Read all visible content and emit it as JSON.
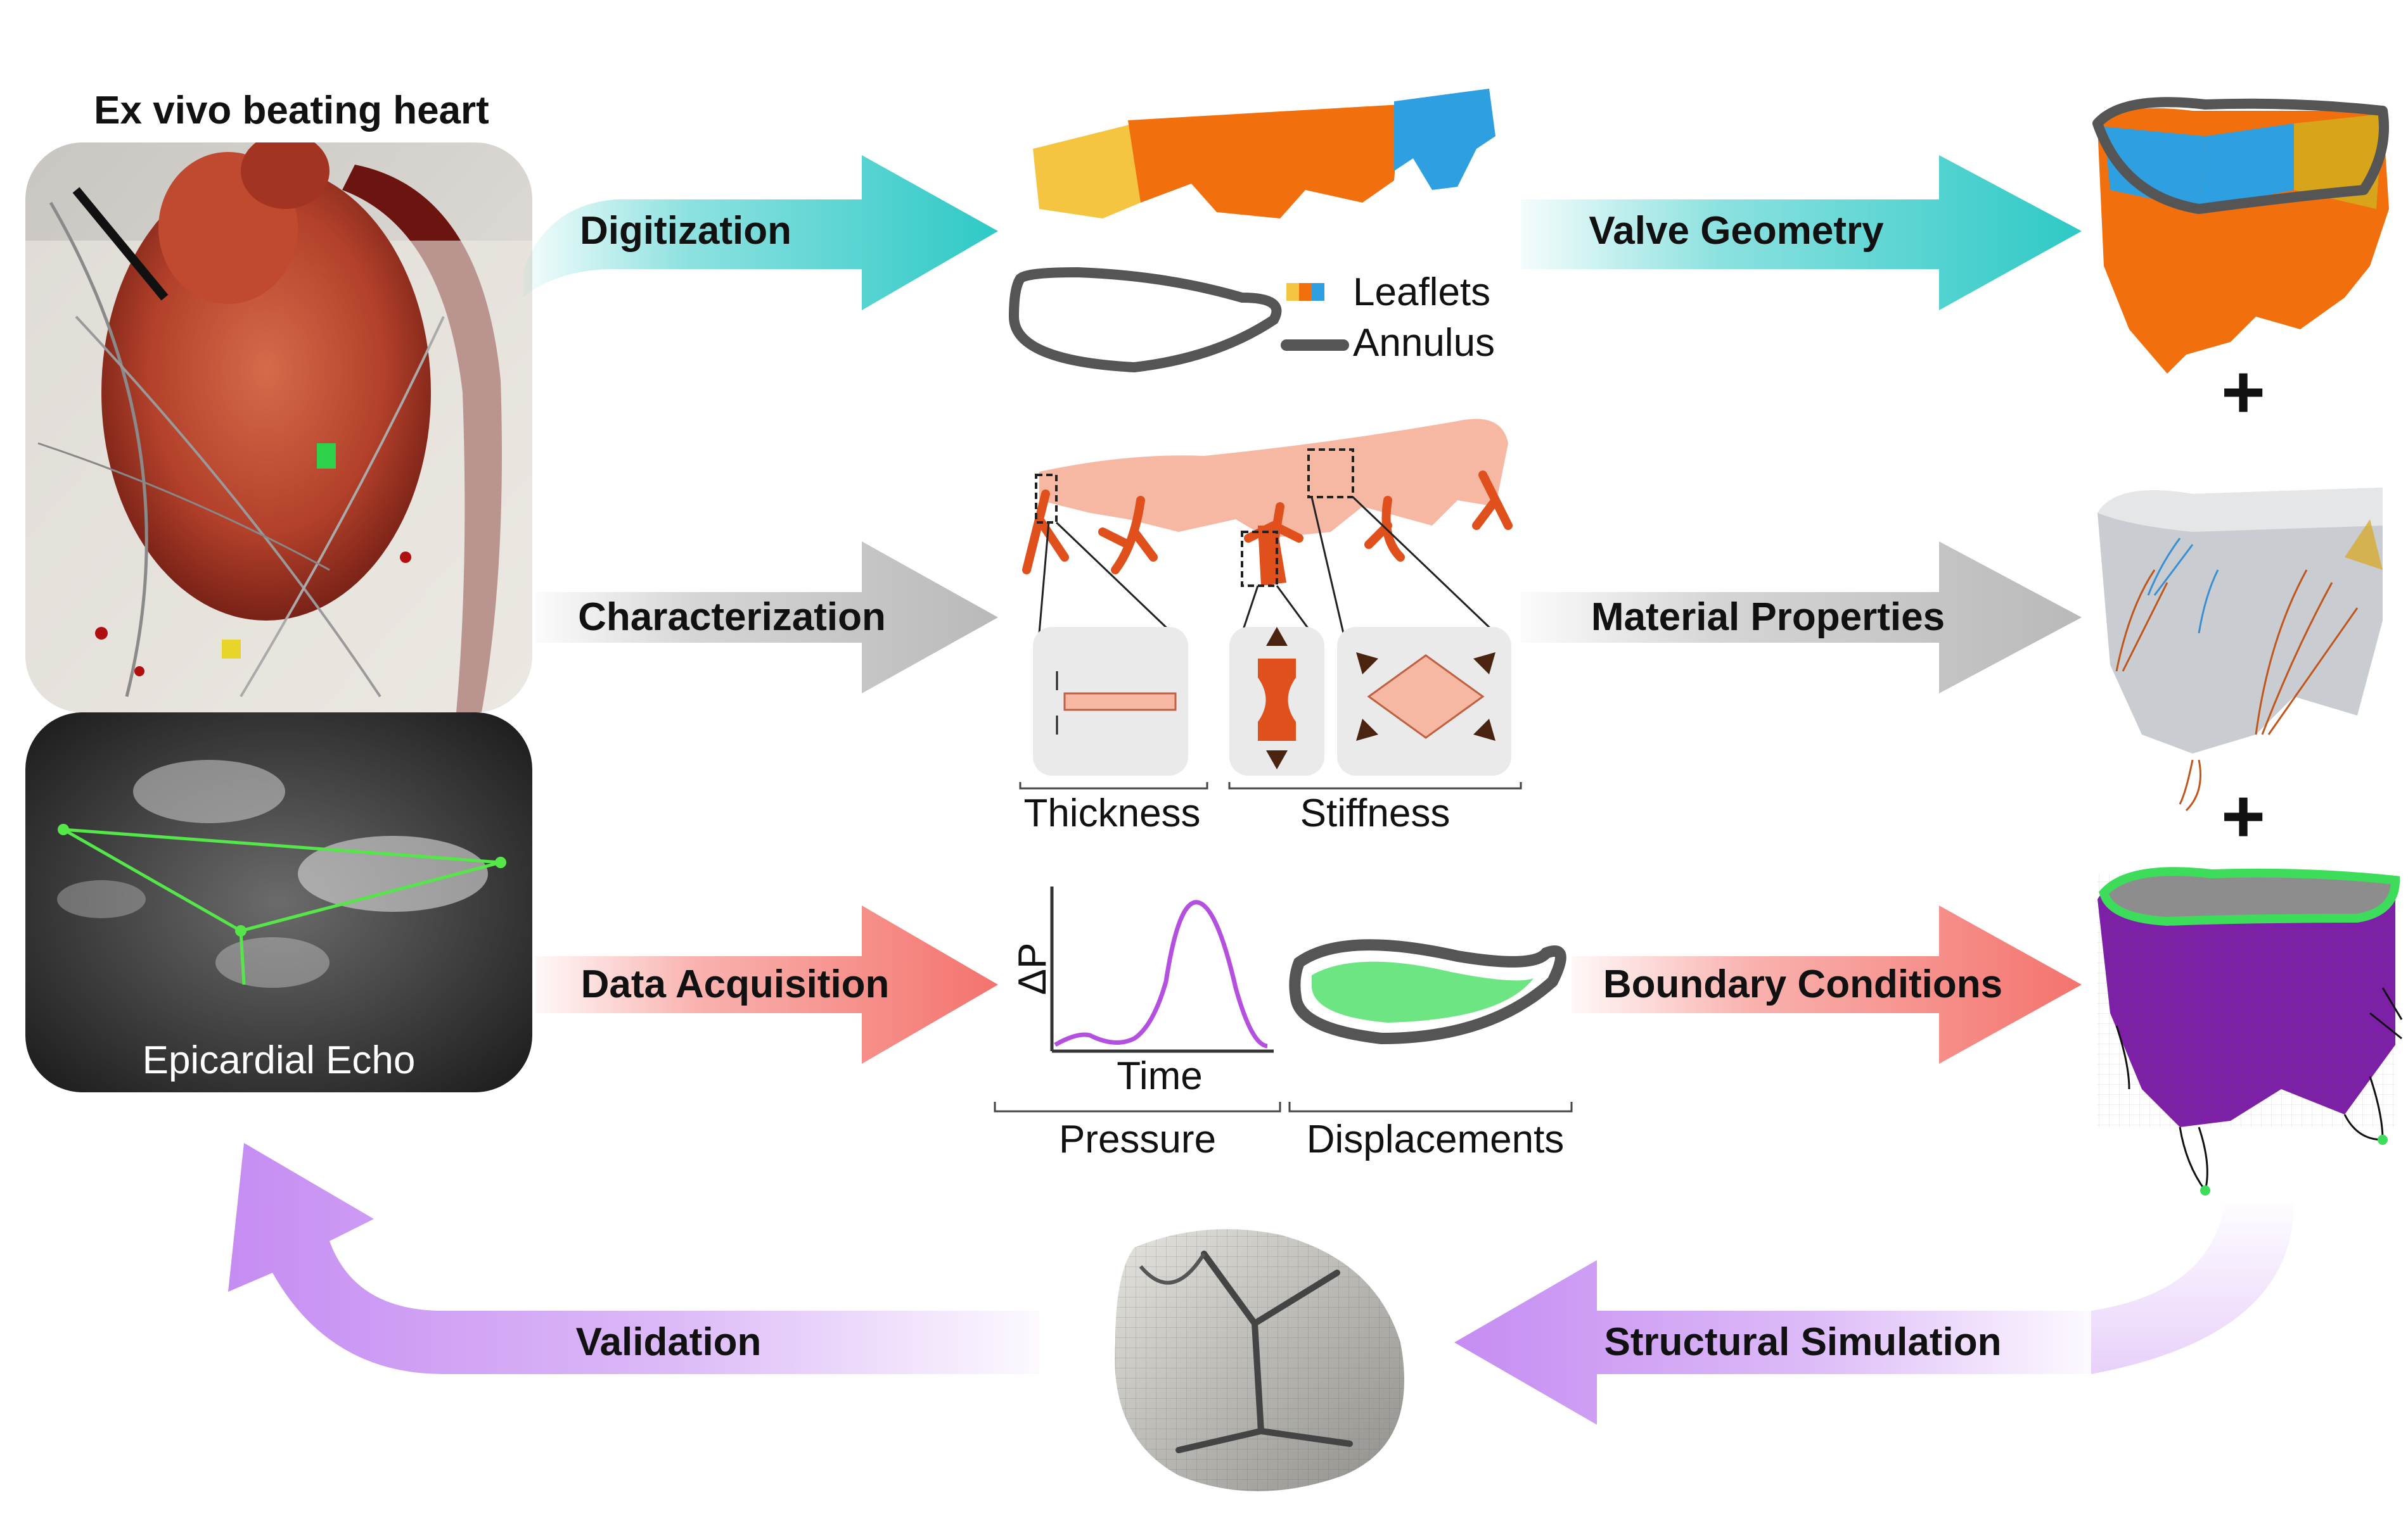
{
  "panel_left": {
    "title": "Ex vivo beating heart",
    "echo_label": "Epicardial Echo"
  },
  "arrows": {
    "digitization": "Digitization",
    "characterization": "Characterization",
    "data_acquisition": "Data Acquisition",
    "valve_geometry": "Valve Geometry",
    "material_properties": "Material Properties",
    "boundary_conditions": "Boundary Conditions",
    "structural_simulation": "Structural Simulation",
    "validation": "Validation"
  },
  "legend": {
    "leaflets": "Leaflets",
    "annulus": "Annulus"
  },
  "characterization_labels": {
    "thickness": "Thickness",
    "stiffness": "Stiffness"
  },
  "acquisition_labels": {
    "delta_p": "ΔP",
    "time": "Time",
    "pressure": "Pressure",
    "displacements": "Displacements"
  },
  "plus_sign": "+",
  "colors": {
    "digitization": "#2ec9c6",
    "characterization": "#b9b9b9",
    "acquisition": "#f4736d",
    "simulation": "#c58cf2",
    "leaflet_yellow": "#f5c542",
    "leaflet_orange": "#f26f0d",
    "leaflet_blue": "#2e9fe0",
    "annulus": "#555555",
    "tissue": "#f6b7a3",
    "chordae": "#e0501c",
    "pressure_curve": "#b44fe0",
    "boundary_green": "#3ddc5a",
    "purple_valve": "#7e1fa8"
  }
}
